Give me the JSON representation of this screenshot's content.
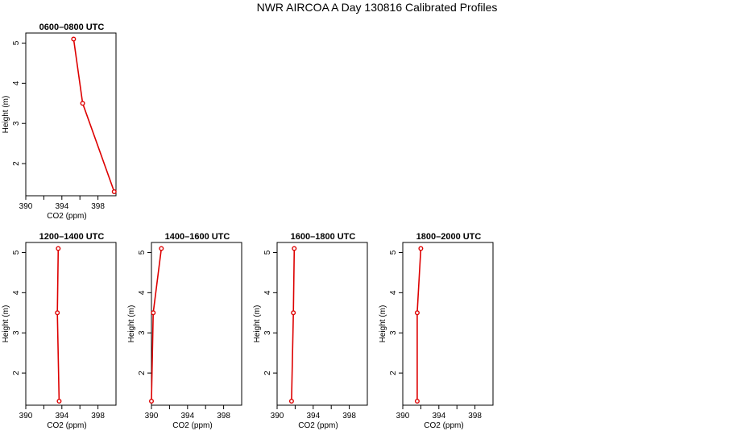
{
  "title": "NWR AIRCOA A  Day 130816  Calibrated Profiles",
  "chart_data": [
    {
      "type": "line",
      "title": "0600–0800 UTC",
      "xlabel": "CO2 (ppm)",
      "ylabel": "Height (m)",
      "xlim": [
        390,
        400
      ],
      "ylim": [
        1.2,
        5.25
      ],
      "xticks": [
        390,
        394,
        398
      ],
      "xticks_minor": [
        392,
        396
      ],
      "yticks": [
        2,
        3,
        4,
        5
      ],
      "series": [
        {
          "x": [
            395.3,
            396.3,
            399.8
          ],
          "y": [
            5.1,
            3.5,
            1.3
          ],
          "color": "#dd0000"
        }
      ]
    },
    {
      "type": "line",
      "title": "1200–1400 UTC",
      "xlabel": "CO2 (ppm)",
      "ylabel": "Height (m)",
      "xlim": [
        390,
        400
      ],
      "ylim": [
        1.2,
        5.25
      ],
      "xticks": [
        390,
        394,
        398
      ],
      "xticks_minor": [
        392,
        396
      ],
      "yticks": [
        2,
        3,
        4,
        5
      ],
      "series": [
        {
          "x": [
            393.6,
            393.5,
            393.7
          ],
          "y": [
            5.1,
            3.5,
            1.3
          ],
          "color": "#dd0000"
        }
      ]
    },
    {
      "type": "line",
      "title": "1400–1600 UTC",
      "xlabel": "CO2 (ppm)",
      "ylabel": "Height (m)",
      "xlim": [
        390,
        400
      ],
      "ylim": [
        1.2,
        5.25
      ],
      "xticks": [
        390,
        394,
        398
      ],
      "xticks_minor": [
        392,
        396
      ],
      "yticks": [
        2,
        3,
        4,
        5
      ],
      "series": [
        {
          "x": [
            391.1,
            390.2,
            390.0
          ],
          "y": [
            5.1,
            3.5,
            1.3
          ],
          "color": "#dd0000"
        }
      ]
    },
    {
      "type": "line",
      "title": "1600–1800 UTC",
      "xlabel": "CO2 (ppm)",
      "ylabel": "Height (m)",
      "xlim": [
        390,
        400
      ],
      "ylim": [
        1.2,
        5.25
      ],
      "xticks": [
        390,
        394,
        398
      ],
      "xticks_minor": [
        392,
        396
      ],
      "yticks": [
        2,
        3,
        4,
        5
      ],
      "series": [
        {
          "x": [
            391.9,
            391.8,
            391.6
          ],
          "y": [
            5.1,
            3.5,
            1.3
          ],
          "color": "#dd0000"
        }
      ]
    },
    {
      "type": "line",
      "title": "1800–2000 UTC",
      "xlabel": "CO2 (ppm)",
      "ylabel": "Height (m)",
      "xlim": [
        390,
        400
      ],
      "ylim": [
        1.2,
        5.25
      ],
      "xticks": [
        390,
        394,
        398
      ],
      "xticks_minor": [
        392,
        396
      ],
      "yticks": [
        2,
        3,
        4,
        5
      ],
      "series": [
        {
          "x": [
            392.0,
            391.6,
            391.6
          ],
          "y": [
            5.1,
            3.5,
            1.3
          ],
          "color": "#dd0000"
        }
      ]
    }
  ]
}
